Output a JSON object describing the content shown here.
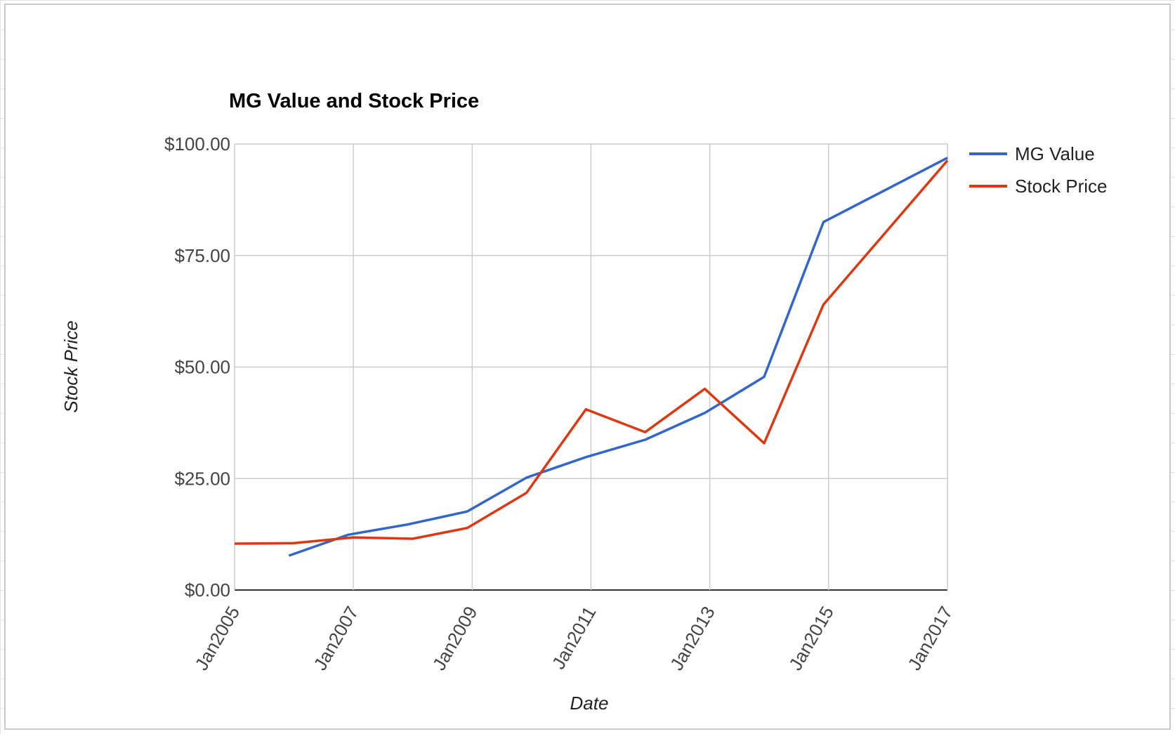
{
  "chart_data": {
    "type": "line",
    "title": "MG Value and Stock Price",
    "xlabel": "Date",
    "ylabel": "Stock Price",
    "x_tick_labels": [
      "Jan2005",
      "Jan2007",
      "Jan2009",
      "Jan2011",
      "Jan2013",
      "Jan2015",
      "Jan2017"
    ],
    "x_ticks": [
      "2005-01-01",
      "2007-01-01",
      "2009-01-01",
      "2011-01-01",
      "2013-01-01",
      "2015-01-01",
      "2017-01-01"
    ],
    "xlim": [
      "2005-01-01",
      "2017-01-01"
    ],
    "y_tick_labels": [
      "$0.00",
      "$25.00",
      "$50.00",
      "$75.00",
      "$100.00"
    ],
    "y_ticks": [
      0,
      25,
      50,
      75,
      100
    ],
    "ylim": [
      0,
      100
    ],
    "grid": true,
    "legend_position": "right",
    "series": [
      {
        "name": "MG Value",
        "color": "#3366cc",
        "points": [
          {
            "x": "2005-12-01",
            "y": 7.7
          },
          {
            "x": "2006-12-01",
            "y": 12.4
          },
          {
            "x": "2007-12-01",
            "y": 14.7
          },
          {
            "x": "2008-12-01",
            "y": 17.6
          },
          {
            "x": "2009-12-01",
            "y": 25.2
          },
          {
            "x": "2010-12-01",
            "y": 29.8
          },
          {
            "x": "2011-12-01",
            "y": 33.7
          },
          {
            "x": "2012-12-01",
            "y": 39.7
          },
          {
            "x": "2013-12-01",
            "y": 47.8
          },
          {
            "x": "2014-12-01",
            "y": 82.5
          },
          {
            "x": "2017-01-01",
            "y": 96.9
          }
        ]
      },
      {
        "name": "Stock Price",
        "color": "#dc3912",
        "points": [
          {
            "x": "2005-01-01",
            "y": 10.4
          },
          {
            "x": "2006-01-01",
            "y": 10.5
          },
          {
            "x": "2007-01-01",
            "y": 11.8
          },
          {
            "x": "2008-01-01",
            "y": 11.5
          },
          {
            "x": "2008-12-01",
            "y": 13.9
          },
          {
            "x": "2009-12-01",
            "y": 21.8
          },
          {
            "x": "2010-12-01",
            "y": 40.5
          },
          {
            "x": "2011-12-01",
            "y": 35.4
          },
          {
            "x": "2012-12-01",
            "y": 45.1
          },
          {
            "x": "2013-12-01",
            "y": 32.9
          },
          {
            "x": "2014-12-01",
            "y": 64.0
          },
          {
            "x": "2017-01-01",
            "y": 96.3
          }
        ]
      }
    ]
  }
}
